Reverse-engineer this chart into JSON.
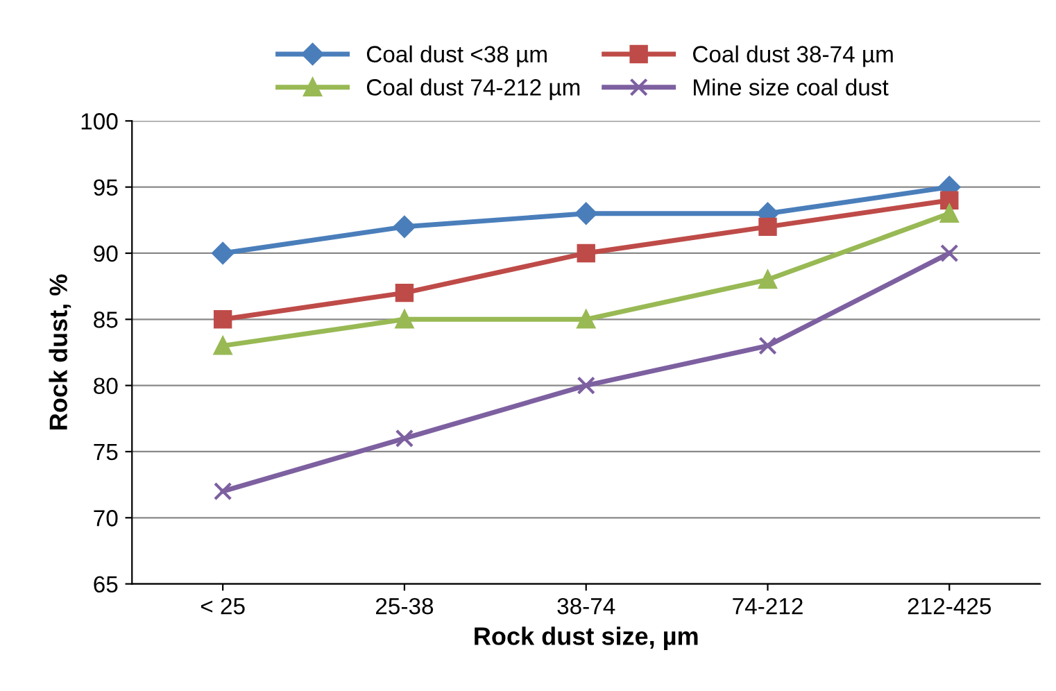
{
  "chart_data": {
    "type": "line",
    "xlabel": "Rock dust size, µm",
    "ylabel": "Rock dust, %",
    "categories": [
      "< 25",
      "25-38",
      "38-74",
      "74-212",
      "212-425"
    ],
    "series": [
      {
        "name": "Coal dust <38 µm",
        "color": "#4a7ebb",
        "marker": "diamond",
        "values": [
          90,
          92,
          93,
          93,
          95
        ]
      },
      {
        "name": "Coal dust 38-74 µm",
        "color": "#be4b48",
        "marker": "square",
        "values": [
          85,
          87,
          90,
          92,
          94
        ]
      },
      {
        "name": "Coal dust 74-212 µm",
        "color": "#98b954",
        "marker": "triangle",
        "values": [
          83,
          85,
          85,
          88,
          93
        ]
      },
      {
        "name": "Mine size coal dust",
        "color": "#7d60a0",
        "marker": "cross",
        "values": [
          72,
          76,
          80,
          83,
          90
        ]
      }
    ],
    "ylim": [
      65,
      100
    ],
    "yticks": [
      65,
      70,
      75,
      80,
      85,
      90,
      95,
      100
    ],
    "grid": "y",
    "legend": "top",
    "line_style": "solid"
  }
}
